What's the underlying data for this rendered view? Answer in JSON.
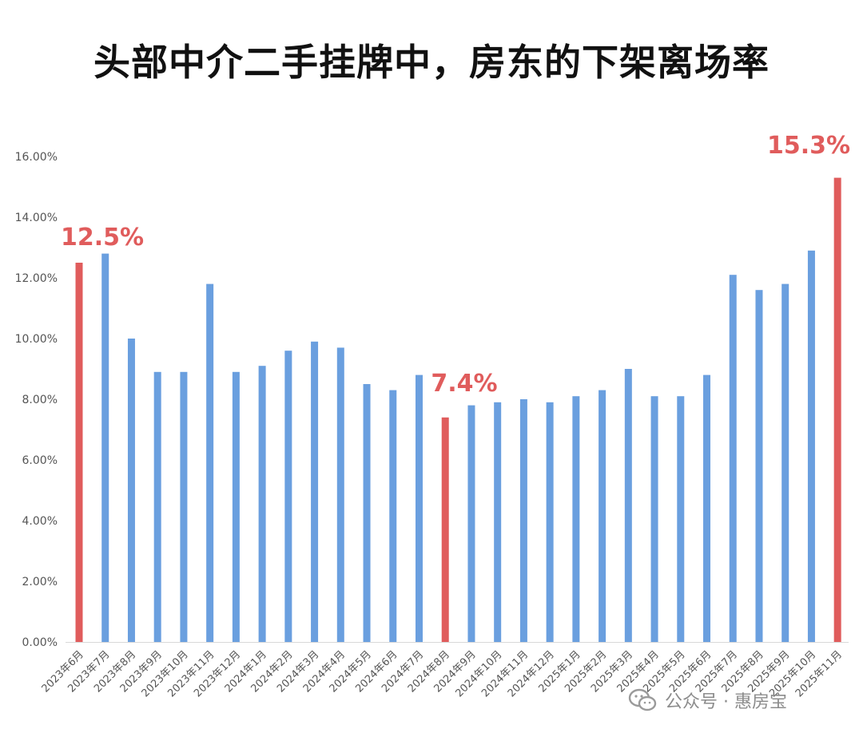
{
  "chart_data": {
    "type": "bar",
    "title": "头部中介二手挂牌中，房东的下架离场率",
    "categories": [
      "2023年6月",
      "2023年7月",
      "2023年8月",
      "2023年9月",
      "2023年10月",
      "2023年11月",
      "2023年12月",
      "2024年1月",
      "2024年2月",
      "2024年3月",
      "2024年4月",
      "2024年5月",
      "2024年6月",
      "2024年7月",
      "2024年8月",
      "2024年9月",
      "2024年10月",
      "2024年11月",
      "2024年12月",
      "2025年1月",
      "2025年2月",
      "2025年3月",
      "2025年4月",
      "2025年5月",
      "2025年6月",
      "2025年7月",
      "2025年8月",
      "2025年9月",
      "2025年10月",
      "2025年11月"
    ],
    "values": [
      12.5,
      12.8,
      10.0,
      8.9,
      8.9,
      11.8,
      8.9,
      9.1,
      9.6,
      9.9,
      9.7,
      8.5,
      8.3,
      8.8,
      7.4,
      7.8,
      7.9,
      8.0,
      7.9,
      8.1,
      8.3,
      9.0,
      8.1,
      8.1,
      8.8,
      12.1,
      11.6,
      11.8,
      12.9,
      15.3
    ],
    "highlight_indices": [
      0,
      14,
      29
    ],
    "annotations": [
      {
        "index": 0,
        "text": "12.5%"
      },
      {
        "index": 14,
        "text": "7.4%"
      },
      {
        "index": 29,
        "text": "15.3%"
      }
    ],
    "ylim": [
      0,
      16
    ],
    "yticks": [
      "0.00%",
      "2.00%",
      "4.00%",
      "6.00%",
      "8.00%",
      "10.00%",
      "12.00%",
      "14.00%",
      "16.00%"
    ],
    "xlabel": "",
    "ylabel": "",
    "grid": false,
    "colors": {
      "bar": "#6a9fdf",
      "highlight": "#e05c5c",
      "annotation": "#e05c5c",
      "tick": "#555555"
    }
  },
  "watermark": {
    "icon": "wechat-icon",
    "text": "公众号 · 惠房宝"
  }
}
